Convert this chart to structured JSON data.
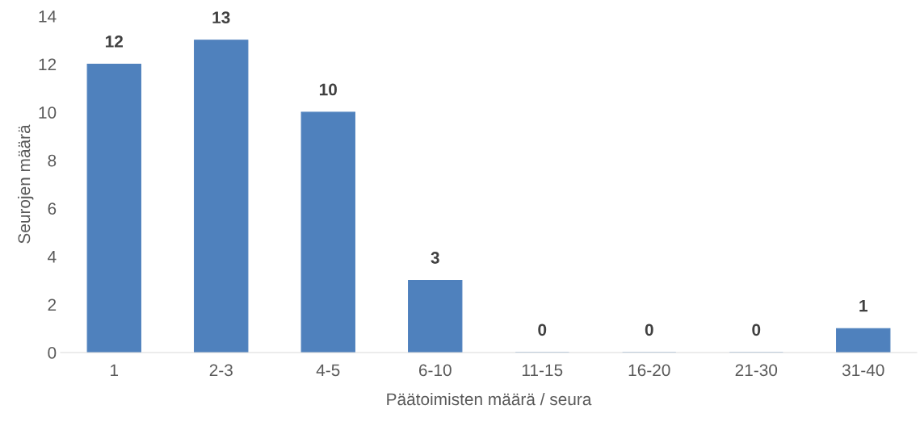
{
  "chart_data": {
    "type": "bar",
    "xlabel": "Päätoimisten määrä / seura",
    "ylabel": "Seurojen määrä",
    "categories": [
      "1",
      "2-3",
      "4-5",
      "6-10",
      "11-15",
      "16-20",
      "21-30",
      "31-40"
    ],
    "values": [
      12,
      13,
      10,
      3,
      0,
      0,
      0,
      1
    ],
    "color": "#4f81bd",
    "ylim": [
      0,
      14
    ],
    "yticks": [
      0,
      2,
      4,
      6,
      8,
      10,
      12,
      14
    ],
    "grid": false,
    "data_labels": true
  }
}
